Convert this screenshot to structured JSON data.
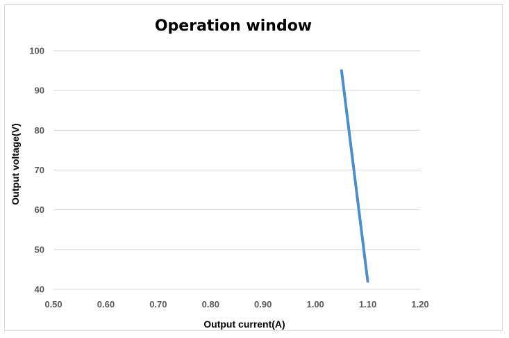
{
  "chart_data": {
    "type": "line",
    "title": "Operation window",
    "xlabel": "Output current(A)",
    "ylabel": "Output voltage(V)",
    "xlim": [
      0.5,
      1.2
    ],
    "ylim": [
      40,
      100
    ],
    "x_ticks": [
      "0.50",
      "0.60",
      "0.70",
      "0.80",
      "0.90",
      "1.00",
      "1.10",
      "1.20"
    ],
    "y_ticks": [
      "40",
      "50",
      "60",
      "70",
      "80",
      "90",
      "100"
    ],
    "grid": "horizontal",
    "legend": "none",
    "series": [
      {
        "color": "#4a90d0",
        "points": [
          {
            "x": 1.05,
            "y": 95
          },
          {
            "x": 1.1,
            "y": 42
          }
        ]
      }
    ]
  }
}
